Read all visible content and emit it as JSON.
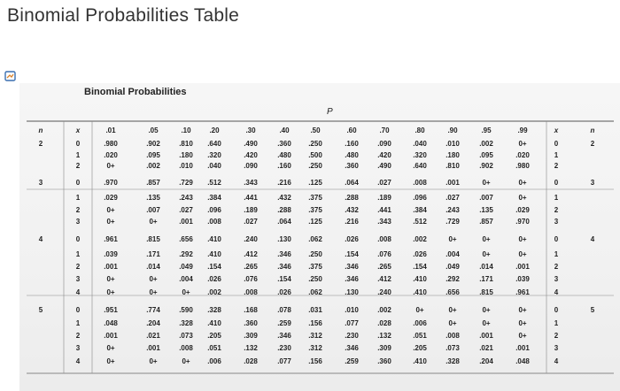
{
  "page_title": "Binomial Probabilities Table",
  "table_title": "Binomial Probabilities",
  "p_label": "P",
  "headers": [
    "n",
    "x",
    ".01",
    ".05",
    ".10",
    ".20",
    ".30",
    ".40",
    ".50",
    ".60",
    ".70",
    ".80",
    ".90",
    ".95",
    ".99",
    "x",
    "n"
  ],
  "rows": [
    {
      "n": "2",
      "x": "0",
      "v": [
        ".980",
        ".902",
        ".810",
        ".640",
        ".490",
        ".360",
        ".250",
        ".160",
        ".090",
        ".040",
        ".010",
        ".002",
        "0+"
      ]
    },
    {
      "n": "",
      "x": "1",
      "v": [
        ".020",
        ".095",
        ".180",
        ".320",
        ".420",
        ".480",
        ".500",
        ".480",
        ".420",
        ".320",
        ".180",
        ".095",
        ".020"
      ]
    },
    {
      "n": "",
      "x": "2",
      "v": [
        "0+",
        ".002",
        ".010",
        ".040",
        ".090",
        ".160",
        ".250",
        ".360",
        ".490",
        ".640",
        ".810",
        ".902",
        ".980"
      ]
    },
    {
      "n": "3",
      "x": "0",
      "v": [
        ".970",
        ".857",
        ".729",
        ".512",
        ".343",
        ".216",
        ".125",
        ".064",
        ".027",
        ".008",
        ".001",
        "0+",
        "0+"
      ]
    },
    {
      "n": "",
      "x": "1",
      "v": [
        ".029",
        ".135",
        ".243",
        ".384",
        ".441",
        ".432",
        ".375",
        ".288",
        ".189",
        ".096",
        ".027",
        ".007",
        "0+"
      ]
    },
    {
      "n": "",
      "x": "2",
      "v": [
        "0+",
        ".007",
        ".027",
        ".096",
        ".189",
        ".288",
        ".375",
        ".432",
        ".441",
        ".384",
        ".243",
        ".135",
        ".029"
      ]
    },
    {
      "n": "",
      "x": "3",
      "v": [
        "0+",
        "0+",
        ".001",
        ".008",
        ".027",
        ".064",
        ".125",
        ".216",
        ".343",
        ".512",
        ".729",
        ".857",
        ".970"
      ]
    },
    {
      "n": "4",
      "x": "0",
      "v": [
        ".961",
        ".815",
        ".656",
        ".410",
        ".240",
        ".130",
        ".062",
        ".026",
        ".008",
        ".002",
        "0+",
        "0+",
        "0+"
      ]
    },
    {
      "n": "",
      "x": "1",
      "v": [
        ".039",
        ".171",
        ".292",
        ".410",
        ".412",
        ".346",
        ".250",
        ".154",
        ".076",
        ".026",
        ".004",
        "0+",
        "0+"
      ]
    },
    {
      "n": "",
      "x": "2",
      "v": [
        ".001",
        ".014",
        ".049",
        ".154",
        ".265",
        ".346",
        ".375",
        ".346",
        ".265",
        ".154",
        ".049",
        ".014",
        ".001"
      ]
    },
    {
      "n": "",
      "x": "3",
      "v": [
        "0+",
        "0+",
        ".004",
        ".026",
        ".076",
        ".154",
        ".250",
        ".346",
        ".412",
        ".410",
        ".292",
        ".171",
        ".039"
      ]
    },
    {
      "n": "",
      "x": "4",
      "v": [
        "0+",
        "0+",
        "0+",
        ".002",
        ".008",
        ".026",
        ".062",
        ".130",
        ".240",
        ".410",
        ".656",
        ".815",
        ".961"
      ]
    },
    {
      "n": "5",
      "x": "0",
      "v": [
        ".951",
        ".774",
        ".590",
        ".328",
        ".168",
        ".078",
        ".031",
        ".010",
        ".002",
        "0+",
        "0+",
        "0+",
        "0+"
      ]
    },
    {
      "n": "",
      "x": "1",
      "v": [
        ".048",
        ".204",
        ".328",
        ".410",
        ".360",
        ".259",
        ".156",
        ".077",
        ".028",
        ".006",
        "0+",
        "0+",
        "0+"
      ]
    },
    {
      "n": "",
      "x": "2",
      "v": [
        ".001",
        ".021",
        ".073",
        ".205",
        ".309",
        ".346",
        ".312",
        ".230",
        ".132",
        ".051",
        ".008",
        ".001",
        "0+"
      ]
    },
    {
      "n": "",
      "x": "3",
      "v": [
        "0+",
        ".001",
        ".008",
        ".051",
        ".132",
        ".230",
        ".312",
        ".346",
        ".309",
        ".205",
        ".073",
        ".021",
        ".001"
      ]
    },
    {
      "n": "",
      "x": "4",
      "v": [
        "0+",
        "0+",
        "0+",
        ".006",
        ".028",
        ".077",
        ".156",
        ".259",
        ".360",
        ".410",
        ".328",
        ".204",
        ".048"
      ]
    }
  ]
}
